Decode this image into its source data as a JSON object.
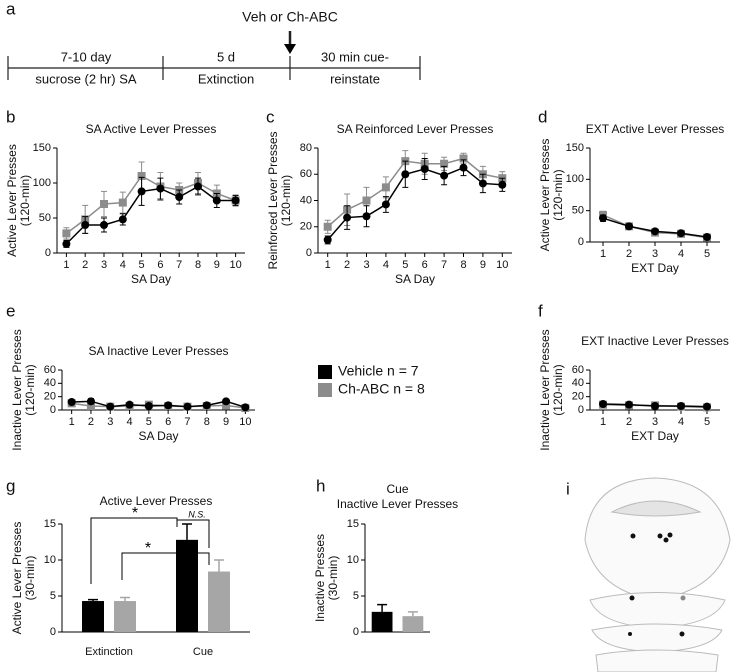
{
  "timeline": {
    "panel": "a",
    "annotation": "Veh or Ch-ABC",
    "phases": [
      [
        "7-10 day",
        "sucrose (2 hr) SA"
      ],
      [
        "5 d",
        "Extinction"
      ],
      [
        "30 min cue-",
        "reinstate"
      ]
    ]
  },
  "brain_panel": {
    "panel": "i"
  },
  "chart_data": [
    {
      "type": "line",
      "panel": "b",
      "title": "SA Active Lever Presses",
      "xlabel": "SA Day",
      "ylabel": [
        "Active Lever Presses",
        "(120-min)"
      ],
      "categories": [
        "1",
        "2",
        "3",
        "4",
        "5",
        "6",
        "7",
        "8",
        "9",
        "10"
      ],
      "ylim": [
        0,
        150
      ],
      "yticks": [
        0,
        50,
        100,
        150
      ],
      "series": [
        {
          "color": "#000000",
          "marker": "circle",
          "values": [
            13,
            40,
            40,
            48,
            88,
            92,
            80,
            95,
            75,
            75
          ],
          "errors": [
            5,
            12,
            10,
            8,
            20,
            15,
            10,
            12,
            10,
            7
          ]
        },
        {
          "color": "#8c8c8c",
          "marker": "square",
          "values": [
            28,
            48,
            70,
            72,
            110,
            95,
            90,
            100,
            85,
            75
          ],
          "errors": [
            8,
            20,
            18,
            15,
            20,
            20,
            10,
            15,
            12,
            8
          ]
        }
      ]
    },
    {
      "type": "line",
      "panel": "c",
      "title": "SA Reinforced Lever Presses",
      "xlabel": "SA Day",
      "ylabel": [
        "Reinforced Lever Presses",
        "(120-min)"
      ],
      "categories": [
        "1",
        "2",
        "3",
        "4",
        "5",
        "6",
        "7",
        "8",
        "9",
        "10"
      ],
      "ylim": [
        0,
        80
      ],
      "yticks": [
        0,
        20,
        40,
        60,
        80
      ],
      "series": [
        {
          "color": "#000000",
          "marker": "circle",
          "values": [
            10,
            27,
            28,
            37,
            60,
            64,
            59,
            65,
            53,
            52
          ],
          "errors": [
            3,
            9,
            8,
            6,
            10,
            8,
            7,
            6,
            7,
            5
          ]
        },
        {
          "color": "#8c8c8c",
          "marker": "square",
          "values": [
            20,
            33,
            40,
            50,
            70,
            68,
            68,
            72,
            60,
            57
          ],
          "errors": [
            5,
            12,
            10,
            8,
            8,
            8,
            5,
            4,
            6,
            5
          ]
        }
      ]
    },
    {
      "type": "line",
      "panel": "d",
      "title": "EXT Active Lever Presses",
      "xlabel": "EXT Day",
      "ylabel": [
        "Active Lever Presses",
        "(120-min)"
      ],
      "categories": [
        "1",
        "2",
        "3",
        "4",
        "5"
      ],
      "ylim": [
        0,
        150
      ],
      "yticks": [
        0,
        50,
        100,
        150
      ],
      "series": [
        {
          "color": "#000000",
          "marker": "circle",
          "values": [
            38,
            25,
            17,
            14,
            8
          ],
          "errors": [
            5,
            4,
            3,
            3,
            2
          ]
        },
        {
          "color": "#8c8c8c",
          "marker": "square",
          "values": [
            43,
            25,
            15,
            13,
            7
          ],
          "errors": [
            6,
            4,
            3,
            3,
            2
          ]
        }
      ]
    },
    {
      "type": "line",
      "panel": "e",
      "title": "SA Inactive Lever Presses",
      "xlabel": "SA Day",
      "ylabel": [
        "Inactive Lever Presses",
        "(120-min)"
      ],
      "categories": [
        "1",
        "2",
        "3",
        "4",
        "5",
        "6",
        "7",
        "8",
        "9",
        "10"
      ],
      "ylim": [
        0,
        60
      ],
      "yticks": [
        0,
        20,
        40,
        60
      ],
      "series": [
        {
          "name": "Vehicle n = 7",
          "color": "#000000",
          "marker": "circle",
          "values": [
            12,
            13,
            5,
            8,
            6,
            7,
            5,
            7,
            13,
            4
          ],
          "errors": [
            3,
            4,
            2,
            2,
            2,
            2,
            2,
            2,
            3,
            1
          ]
        },
        {
          "name": "Ch-ABC n = 8",
          "color": "#8c8c8c",
          "marker": "square",
          "values": [
            10,
            6,
            5,
            6,
            8,
            6,
            5,
            6,
            7,
            3
          ],
          "errors": [
            3,
            2,
            2,
            2,
            2,
            2,
            2,
            2,
            2,
            1
          ]
        }
      ]
    },
    {
      "type": "line",
      "panel": "f",
      "title": "EXT Inactive Lever Presses",
      "xlabel": "EXT Day",
      "ylabel": [
        "Inactive Lever Presses",
        "(120-min)"
      ],
      "categories": [
        "1",
        "2",
        "3",
        "4",
        "5"
      ],
      "ylim": [
        0,
        60
      ],
      "yticks": [
        0,
        20,
        40,
        60
      ],
      "series": [
        {
          "color": "#000000",
          "marker": "circle",
          "values": [
            9,
            8,
            6,
            6,
            5
          ],
          "errors": [
            2,
            2,
            2,
            1,
            1
          ]
        },
        {
          "color": "#8c8c8c",
          "marker": "square",
          "values": [
            8,
            7,
            7,
            5,
            4
          ],
          "errors": [
            2,
            2,
            2,
            1,
            1
          ]
        }
      ]
    },
    {
      "type": "bar",
      "panel": "g",
      "title": "Active Lever Presses",
      "ylabel": [
        "Active Lever Presses",
        "(30-min)"
      ],
      "categories": [
        "Extinction",
        "Cue"
      ],
      "ylim": [
        0,
        15
      ],
      "yticks": [
        0,
        5,
        10,
        15
      ],
      "annotations": [
        "*",
        "*",
        "N.S."
      ],
      "series": [
        {
          "color": "#000000",
          "values": [
            4.3,
            12.8
          ],
          "errors": [
            0.2,
            2.2
          ]
        },
        {
          "color": "#a6a6a6",
          "values": [
            4.3,
            8.4
          ],
          "errors": [
            0.5,
            1.6
          ]
        }
      ]
    },
    {
      "type": "bar",
      "panel": "h",
      "title": "Cue",
      "subtitle": "Inactive Lever Presses",
      "ylabel": [
        "Inactive Presses",
        "(30-min)"
      ],
      "categories": [
        null
      ],
      "ylim": [
        0,
        15
      ],
      "yticks": [
        0,
        5,
        10,
        15
      ],
      "series": [
        {
          "color": "#000000",
          "values": [
            2.8
          ],
          "errors": [
            1.0
          ]
        },
        {
          "color": "#a6a6a6",
          "values": [
            2.2
          ],
          "errors": [
            0.6
          ]
        }
      ]
    }
  ]
}
